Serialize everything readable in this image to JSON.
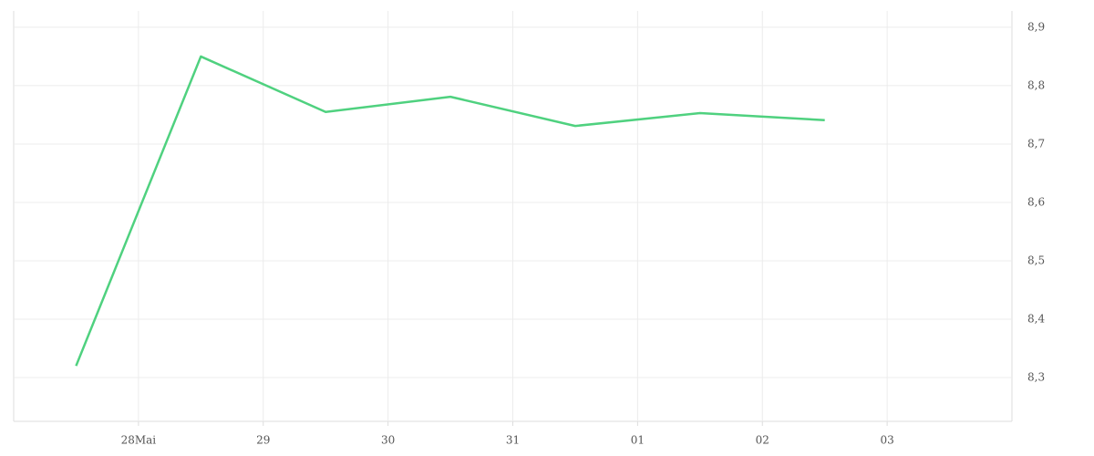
{
  "chart_data": {
    "type": "line",
    "x": [
      0.5,
      1.5,
      2.5,
      3.5,
      4.5,
      5.5,
      6.5
    ],
    "series": [
      {
        "name": null,
        "color": "#4fd17f",
        "values": [
          8.32,
          8.85,
          8.755,
          8.781,
          8.731,
          8.753,
          8.741
        ]
      }
    ],
    "xlim": [
      0,
      8
    ],
    "xticks": [
      {
        "value": 1,
        "label": "28Mai"
      },
      {
        "value": 2,
        "label": "29"
      },
      {
        "value": 3,
        "label": "30"
      },
      {
        "value": 4,
        "label": "31"
      },
      {
        "value": 5,
        "label": "01"
      },
      {
        "value": 6,
        "label": "02"
      },
      {
        "value": 7,
        "label": "03"
      }
    ],
    "ylim": [
      8.225,
      8.928
    ],
    "yticks": [
      {
        "value": 8.3,
        "label": "8,3"
      },
      {
        "value": 8.4,
        "label": "8,4"
      },
      {
        "value": 8.5,
        "label": "8,5"
      },
      {
        "value": 8.6,
        "label": "8,6"
      },
      {
        "value": 8.7,
        "label": "8,7"
      },
      {
        "value": 8.8,
        "label": "8,8"
      },
      {
        "value": 8.9,
        "label": "8,9"
      }
    ],
    "grid": true,
    "y_axis_side": "right"
  }
}
